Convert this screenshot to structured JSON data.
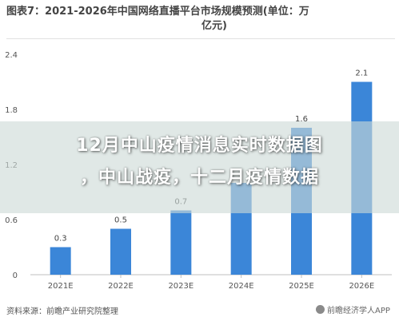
{
  "chart_title": {
    "line1": "图表7：2021-2026年中国网络直播平台市场规模预测(单位：万",
    "line2": "亿元)"
  },
  "source": "资料来源：前瞻产业研究院整理",
  "watermark": "前瞻经济学人APP",
  "overlay": {
    "line1": "12月中山疫情消息实时数据图",
    "line2": "，中山战疫，十二月疫情数据"
  },
  "chart_data": {
    "type": "bar",
    "title": "2021-2026年中国网络直播平台市场规模预测(单位：万亿元)",
    "categories": [
      "2021E",
      "2022E",
      "2023E",
      "2024E",
      "2025E",
      "2026E"
    ],
    "values": [
      0.3,
      0.5,
      0.7,
      1.0,
      1.6,
      2.1
    ],
    "value_labels": [
      "0.3",
      "0.5",
      "0.7",
      "",
      "1.6",
      "2.1"
    ],
    "ylim": [
      0,
      2.4
    ],
    "yticks": [
      "0",
      "0.6",
      "1.2",
      "1.8",
      "2.4"
    ],
    "ytick_values": [
      0,
      0.6,
      1.2,
      1.8,
      2.4
    ],
    "bar_color": "#3b86d8",
    "grid": false
  }
}
